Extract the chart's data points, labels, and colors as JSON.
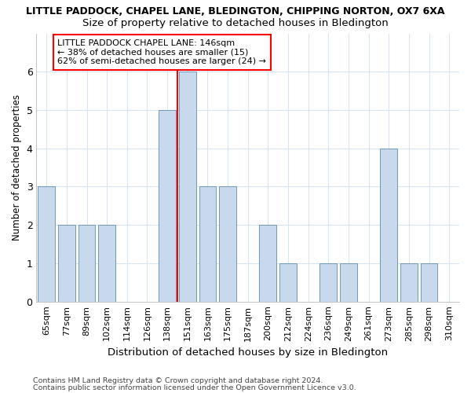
{
  "title": "LITTLE PADDOCK, CHAPEL LANE, BLEDINGTON, CHIPPING NORTON, OX7 6XA",
  "subtitle": "Size of property relative to detached houses in Bledington",
  "xlabel": "Distribution of detached houses by size in Bledington",
  "ylabel": "Number of detached properties",
  "categories": [
    "65sqm",
    "77sqm",
    "89sqm",
    "102sqm",
    "114sqm",
    "126sqm",
    "138sqm",
    "151sqm",
    "163sqm",
    "175sqm",
    "187sqm",
    "200sqm",
    "212sqm",
    "224sqm",
    "236sqm",
    "249sqm",
    "261sqm",
    "273sqm",
    "285sqm",
    "298sqm",
    "310sqm"
  ],
  "values": [
    3,
    2,
    2,
    2,
    0,
    0,
    5,
    6,
    3,
    3,
    0,
    2,
    1,
    0,
    1,
    1,
    0,
    4,
    1,
    1,
    0
  ],
  "bar_color": "#c8d8ed",
  "bar_edge_color": "#7098b8",
  "ref_line_index": 7,
  "annotation_line1": "LITTLE PADDOCK CHAPEL LANE: 146sqm",
  "annotation_line2": "← 38% of detached houses are smaller (15)",
  "annotation_line3": "62% of semi-detached houses are larger (24) →",
  "ylim": [
    0,
    7
  ],
  "yticks": [
    0,
    1,
    2,
    3,
    4,
    5,
    6,
    7
  ],
  "footer1": "Contains HM Land Registry data © Crown copyright and database right 2024.",
  "footer2": "Contains public sector information licensed under the Open Government Licence v3.0.",
  "background_color": "#ffffff",
  "plot_bg_color": "#ffffff",
  "grid_color": "#d8e4f0",
  "title_fontsize": 9,
  "subtitle_fontsize": 10
}
